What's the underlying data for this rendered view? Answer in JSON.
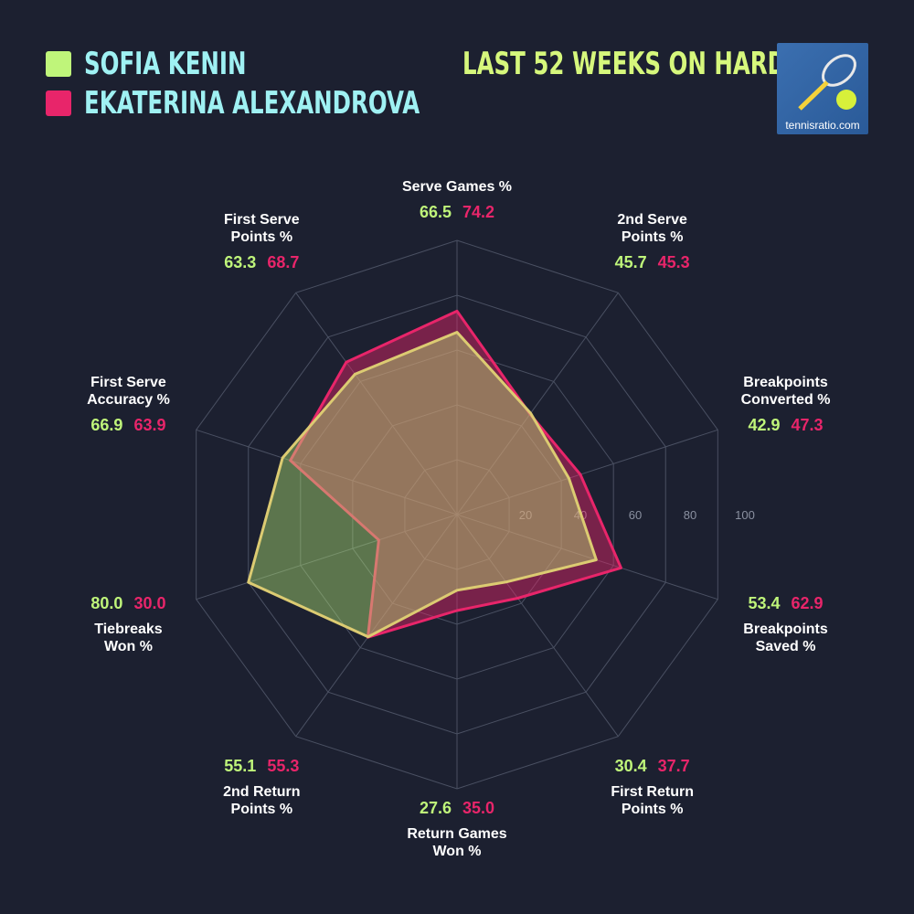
{
  "chart_data": {
    "type": "radar",
    "title": "LAST 52 WEEKS ON HARD",
    "logo_text": "tennisratio.com",
    "categories": [
      [
        "Serve Games %"
      ],
      [
        "2nd Serve",
        "Points %"
      ],
      [
        "Breakpoints",
        "Converted %"
      ],
      [
        "Breakpoints",
        "Saved %"
      ],
      [
        "First Return",
        "Points %"
      ],
      [
        "Return Games",
        "Won %"
      ],
      [
        "2nd Return",
        "Points %"
      ],
      [
        "Tiebreaks",
        "Won %"
      ],
      [
        "First Serve",
        "Accuracy %"
      ],
      [
        "First Serve",
        "Points %"
      ]
    ],
    "series": [
      {
        "name": "SOFIA KENIN",
        "color": "#bff57a",
        "values": [
          66.5,
          45.7,
          42.9,
          53.4,
          30.4,
          27.6,
          55.1,
          80,
          66.9,
          63.3
        ],
        "value_labels": [
          "66.5",
          "45.7",
          "42.9",
          "53.4",
          "30.4",
          "27.6",
          "55.1",
          "80.0",
          "66.9",
          "63.3"
        ]
      },
      {
        "name": "EKATERINA ALEXANDROVA",
        "color": "#e8256a",
        "values": [
          74.2,
          45.3,
          47.3,
          62.9,
          37.7,
          35,
          55.3,
          30,
          63.9,
          68.7
        ],
        "value_labels": [
          "74.2",
          "45.3",
          "47.3",
          "62.9",
          "37.7",
          "35.0",
          "55.3",
          "30.0",
          "63.9",
          "68.7"
        ]
      }
    ],
    "rlim": [
      0,
      100
    ],
    "rticks": [
      20,
      40,
      60,
      80,
      100
    ]
  }
}
